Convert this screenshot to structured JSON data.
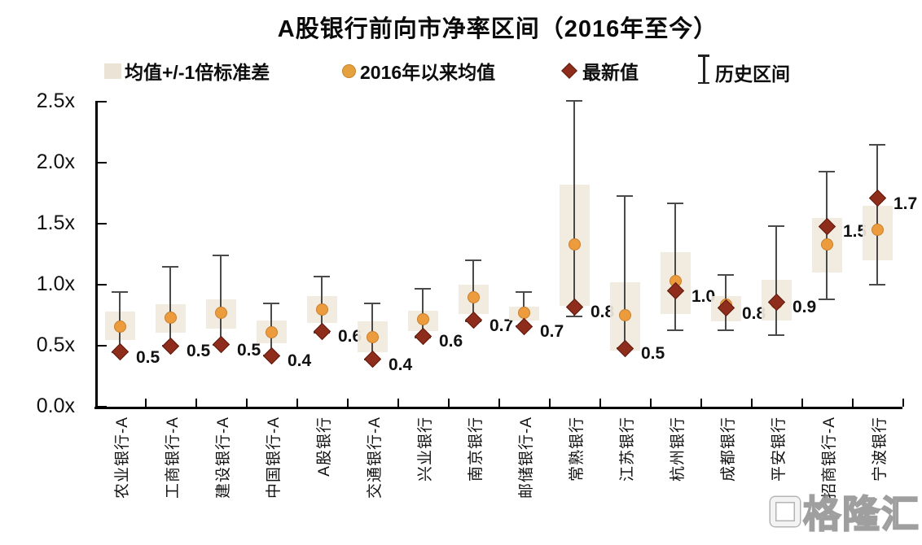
{
  "title": "A股银行前向市净率区间（2016年至今）",
  "legend": {
    "items": [
      {
        "label": "均值+/-1倍标准差",
        "marker": "std-box",
        "color": "#EAE3D6"
      },
      {
        "label": "2016年以来均值",
        "marker": "mean-dot",
        "color": "#E5A13D"
      },
      {
        "label": "最新值",
        "marker": "latest-diamond",
        "color": "#8E2D1C"
      },
      {
        "label": "历史区间",
        "marker": "range-errorbar",
        "color": "#222222"
      }
    ]
  },
  "y_axis": {
    "ticks": [
      "0.0x",
      "0.5x",
      "1.0x",
      "1.5x",
      "2.0x",
      "2.5x"
    ],
    "min": 0.0,
    "max": 2.5
  },
  "watermark": {
    "text": "格隆汇"
  },
  "colors": {
    "std_box": "#F1E9DD",
    "mean_dot": "#EC9C3C",
    "latest_diamond": "#8E2D1C",
    "whisker": "#4A4A4A",
    "axis": "#000000"
  },
  "chart_data": {
    "type": "errorbar",
    "title": "A股银行前向市净率区间（2016年至今）",
    "xlabel": "",
    "ylabel": "",
    "ylim": [
      0.0,
      2.5
    ],
    "y_tick_labels": [
      "0.0x",
      "0.5x",
      "1.0x",
      "1.5x",
      "2.0x",
      "2.5x"
    ],
    "grid": false,
    "legend_position": "top",
    "categories": [
      "农业银行-A",
      "工商银行-A",
      "建设银行-A",
      "中国银行-A",
      "A股银行",
      "交通银行-A",
      "兴业银行",
      "南京银行",
      "邮储银行-A",
      "常熟银行",
      "江苏银行",
      "杭州银行",
      "成都银行",
      "平安银行",
      "招商银行-A",
      "宁波银行"
    ],
    "series": [
      {
        "name": "均值+/-1倍标准差",
        "type": "box",
        "low": [
          0.55,
          0.61,
          0.64,
          0.52,
          0.69,
          0.45,
          0.62,
          0.76,
          0.71,
          0.83,
          0.46,
          0.76,
          0.7,
          0.71,
          1.1,
          1.2
        ],
        "high": [
          0.78,
          0.84,
          0.88,
          0.71,
          0.91,
          0.7,
          0.79,
          1.0,
          0.82,
          1.82,
          1.02,
          1.27,
          0.91,
          1.04,
          1.55,
          1.65
        ]
      },
      {
        "name": "2016年以来均值",
        "type": "dot",
        "values": [
          0.66,
          0.73,
          0.77,
          0.61,
          0.8,
          0.57,
          0.72,
          0.9,
          0.77,
          1.33,
          0.75,
          1.03,
          0.84,
          0.85,
          1.33,
          1.45
        ]
      },
      {
        "name": "最新值",
        "type": "diamond",
        "values": [
          0.45,
          0.5,
          0.51,
          0.42,
          0.62,
          0.39,
          0.58,
          0.71,
          0.66,
          0.82,
          0.48,
          0.95,
          0.81,
          0.86,
          1.48,
          1.71
        ],
        "data_labels": [
          "0.5",
          "0.5",
          "0.5",
          "0.4",
          "0.6",
          "0.4",
          "0.6",
          "0.7",
          "0.7",
          "0.8",
          "0.5",
          "1.0",
          "0.8",
          "0.9",
          "1.5",
          "1.7"
        ]
      },
      {
        "name": "历史区间",
        "type": "whisker",
        "low": [
          0.45,
          0.5,
          0.51,
          0.42,
          0.61,
          0.39,
          0.57,
          0.7,
          0.66,
          0.74,
          0.48,
          0.63,
          0.63,
          0.59,
          0.88,
          1.0
        ],
        "high": [
          0.94,
          1.15,
          1.24,
          0.85,
          1.07,
          0.85,
          0.97,
          1.2,
          0.94,
          2.51,
          1.73,
          1.67,
          1.08,
          1.48,
          1.93,
          2.15
        ]
      }
    ]
  }
}
